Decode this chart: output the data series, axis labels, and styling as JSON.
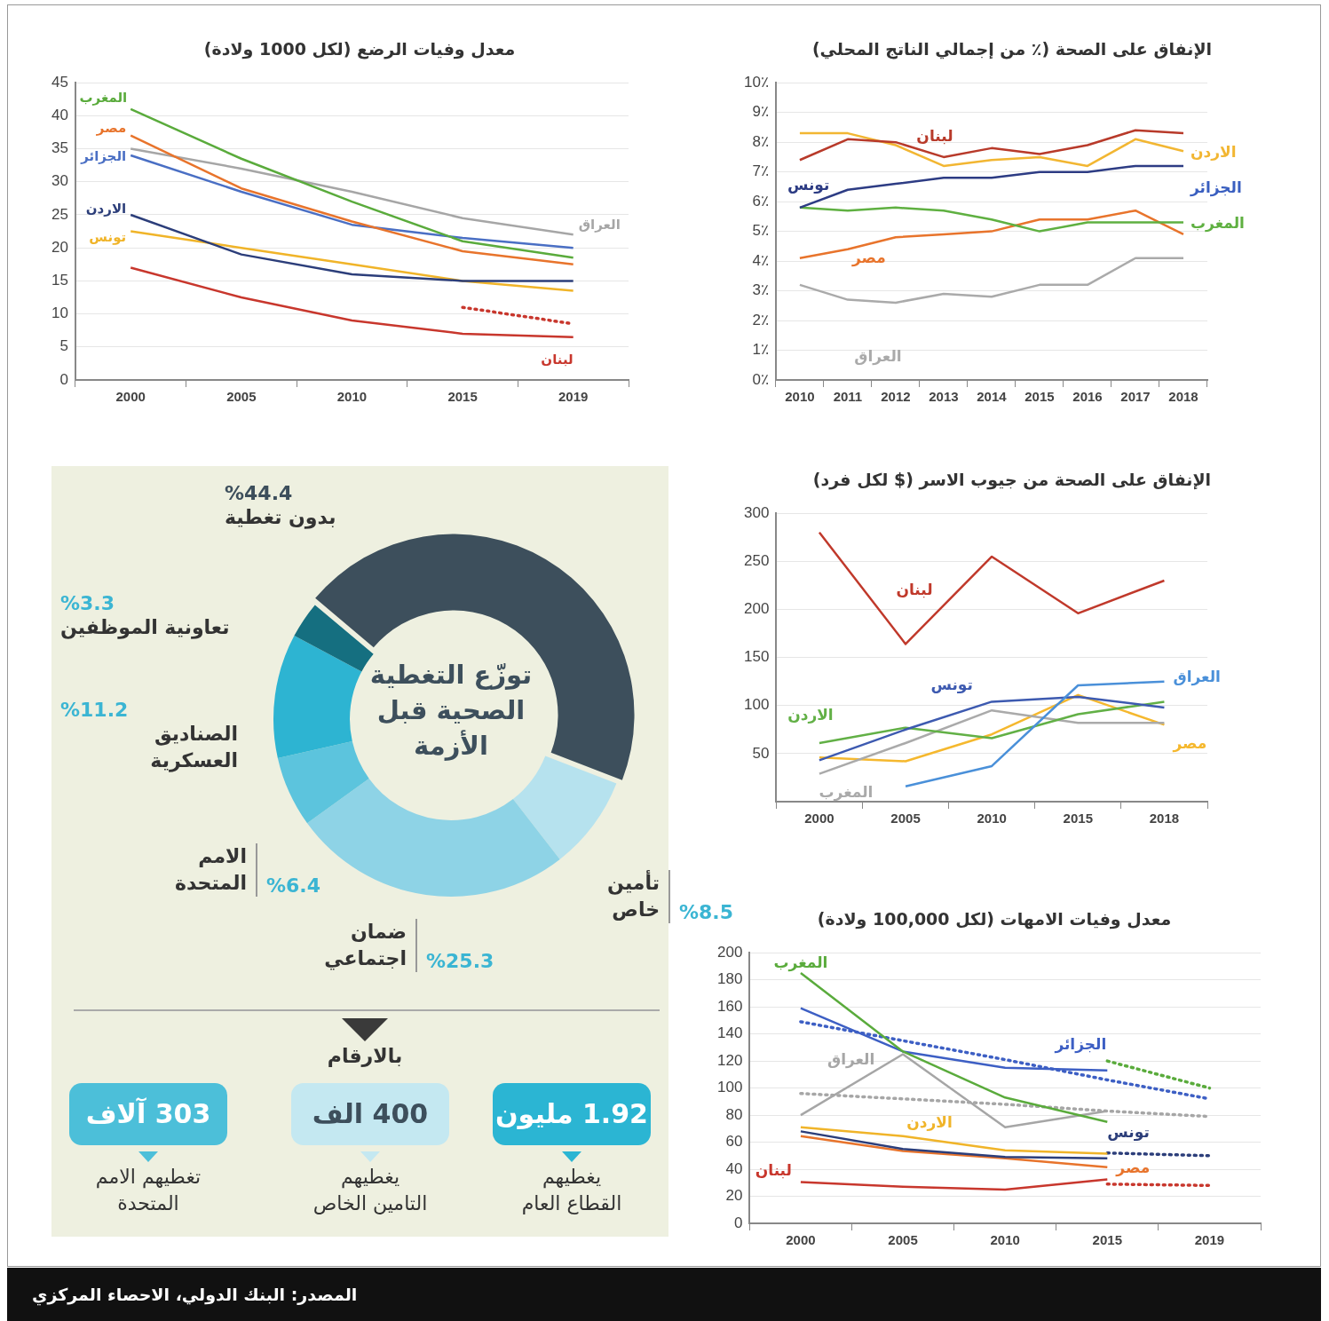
{
  "chart_data": [
    {
      "type": "line",
      "title": "معدل وفيات الرضع (لكل 1000 ولادة)",
      "categories": [
        "2000",
        "2005",
        "2010",
        "2015",
        "2019"
      ],
      "ylim": [
        0,
        45
      ],
      "yticks": [
        0,
        5,
        10,
        15,
        20,
        25,
        30,
        35,
        40,
        45
      ],
      "grid": "y",
      "legend": false,
      "series": [
        {
          "name": "المغرب",
          "color": "#5aab3c",
          "values": [
            41,
            33.5,
            27,
            21,
            18.5
          ]
        },
        {
          "name": "مصر",
          "color": "#e8742c",
          "values": [
            37,
            29,
            24,
            19.5,
            17.5
          ]
        },
        {
          "name": "الجزائر",
          "color": "#4a6fc4",
          "values": [
            34,
            28.5,
            23.5,
            21.5,
            20
          ]
        },
        {
          "name": "العراق",
          "color": "#a6a6a6",
          "values": [
            35,
            32,
            28.5,
            24.5,
            22
          ]
        },
        {
          "name": "الاردن",
          "color": "#2c3e7a",
          "values": [
            25,
            19,
            16,
            15,
            15
          ]
        },
        {
          "name": "تونس",
          "color": "#f0b429",
          "values": [
            22.5,
            20,
            17.5,
            15,
            13.5
          ]
        },
        {
          "name": "لبنان",
          "color": "#c8372d",
          "values": [
            17,
            12.5,
            9,
            7,
            6.5
          ]
        },
        {
          "color": "#c8372d",
          "line_style": "dotted",
          "values": [
            null,
            null,
            null,
            11,
            8.5
          ]
        }
      ]
    },
    {
      "type": "line",
      "title": "الإنفاق على الصحة (٪ من إجمالي الناتج المحلي)",
      "categories": [
        "2010",
        "2011",
        "2012",
        "2013",
        "2014",
        "2015",
        "2016",
        "2017",
        "2018"
      ],
      "ylim": [
        0,
        10
      ],
      "yticks": [
        {
          "value": 0,
          "label": "0٪"
        },
        {
          "value": 1,
          "label": "1٪"
        },
        {
          "value": 2,
          "label": "2٪"
        },
        {
          "value": 3,
          "label": "3٪"
        },
        {
          "value": 4,
          "label": "4٪"
        },
        {
          "value": 5,
          "label": "5٪"
        },
        {
          "value": 6,
          "label": "6٪"
        },
        {
          "value": 7,
          "label": "7٪"
        },
        {
          "value": 8,
          "label": "8٪"
        },
        {
          "value": 9,
          "label": "9٪"
        },
        {
          "value": 10,
          "label": "10٪"
        }
      ],
      "grid": "y",
      "legend": false,
      "series": [
        {
          "name": "لبنان",
          "color": "#b83a2a",
          "values": [
            7.4,
            8.1,
            8.0,
            7.5,
            7.8,
            7.6,
            7.9,
            8.4,
            8.3
          ]
        },
        {
          "name": "الاردن",
          "color": "#f2b632",
          "values": [
            8.3,
            8.3,
            7.9,
            7.2,
            7.4,
            7.5,
            7.2,
            8.1,
            7.7
          ]
        },
        {
          "name": "تونس",
          "color": "#2d3c84",
          "values": [
            5.8,
            6.4,
            6.6,
            6.8,
            6.8,
            7.0,
            7.0,
            7.2,
            7.2
          ]
        },
        {
          "name": "الجزائر",
          "color": "#3a5fc0",
          "values": [
            null,
            null,
            null,
            null,
            null,
            null,
            null,
            null,
            null
          ]
        },
        {
          "name": "المغرب",
          "color": "#5fb041",
          "values": [
            5.8,
            5.7,
            5.8,
            5.7,
            5.4,
            5.0,
            5.3,
            5.3,
            5.3
          ]
        },
        {
          "name": "مصر",
          "color": "#e8742c",
          "values": [
            4.1,
            4.4,
            4.8,
            4.9,
            5.0,
            5.4,
            5.4,
            5.7,
            4.9
          ]
        },
        {
          "name": "العراق",
          "color": "#aaaaaa",
          "values": [
            3.2,
            2.7,
            2.6,
            2.9,
            2.8,
            3.2,
            3.2,
            4.1,
            4.1
          ]
        }
      ]
    },
    {
      "type": "donut",
      "title": "توزّع التغطية الصحية قبل الأزمة",
      "categories": [
        "بدون تغطية",
        "تأمين خاص",
        "ضمان اجتماعي",
        "الامم المتحدة",
        "الصناديق العسكرية",
        "تعاونية الموظفين"
      ],
      "values": [
        44.4,
        8.5,
        25.3,
        6.4,
        11.2,
        3.3
      ],
      "value_labels": [
        "%44.4",
        "%8.5",
        "%25.3",
        "%6.4",
        "%11.2",
        "%3.3"
      ],
      "colors": [
        "#3d4f5c",
        "#b6e2ee",
        "#8ed3e6",
        "#5cc4dd",
        "#2db4d2",
        "#156f80"
      ],
      "legend": false
    },
    {
      "type": "line",
      "title": "الإنفاق على الصحة من جيوب الاسر ($ لكل فرد)",
      "categories": [
        "2000",
        "2005",
        "2010",
        "2015",
        "2018"
      ],
      "ylim": [
        0,
        300
      ],
      "yticks": [
        50,
        100,
        150,
        200,
        250,
        300
      ],
      "grid": "y",
      "legend": false,
      "series": [
        {
          "name": "لبنان",
          "color": "#c0392b",
          "values": [
            280,
            164,
            255,
            196,
            230
          ]
        },
        {
          "name": "العراق",
          "color": "#4a90d9",
          "values": [
            null,
            16,
            37,
            121,
            125
          ]
        },
        {
          "name": "تونس",
          "color": "#3d5ab0",
          "values": [
            43,
            75,
            104,
            109,
            98
          ]
        },
        {
          "name": "الاردن",
          "color": "#62b046",
          "values": [
            61,
            77,
            66,
            91,
            104
          ]
        },
        {
          "name": "المغرب",
          "color": "#aaaaaa",
          "values": [
            29,
            61,
            95,
            82,
            82
          ]
        },
        {
          "name": "مصر",
          "color": "#f5b82e",
          "values": [
            46,
            42,
            70,
            111,
            80
          ]
        }
      ]
    },
    {
      "type": "other",
      "title": "بالارقام",
      "categories": [
        "تغطيهم الامم المتحدة",
        "يغطيهم التامين الخاص",
        "يغطيهم القطاع العام"
      ],
      "value_labels": [
        "303 آلاف",
        "400 الف",
        "1.92 مليون"
      ],
      "colors": [
        "#4cbfd9",
        "#c4e8f1",
        "#2bb5d3"
      ],
      "annotations": [
        "المصدر: البنك الدولي، الاحصاء المركزي"
      ]
    },
    {
      "type": "line",
      "title": "معدل وفيات الامهات (لكل 100,000 ولادة)",
      "categories": [
        "2000",
        "2005",
        "2010",
        "2015",
        "2019"
      ],
      "ylim": [
        0,
        200
      ],
      "yticks": [
        0,
        20,
        40,
        60,
        80,
        100,
        120,
        140,
        160,
        180,
        200
      ],
      "grid": "y",
      "legend": false,
      "series": [
        {
          "name": "المغرب",
          "color": "#5aab3c",
          "values": [
            185,
            127,
            93,
            75,
            null
          ]
        },
        {
          "name": "الجزائر",
          "color": "#3d5fc4",
          "values": [
            159,
            127,
            115,
            113,
            null
          ]
        },
        {
          "name": "العراق",
          "color": "#a6a6a6",
          "values": [
            80,
            125,
            71,
            83,
            null
          ]
        },
        {
          "name": "الاردن",
          "color": "#f0b429",
          "values": [
            71,
            64.5,
            54,
            51.5,
            null
          ]
        },
        {
          "name": "تونس",
          "color": "#2c3e7a",
          "values": [
            68,
            55,
            49,
            48,
            null
          ]
        },
        {
          "name": "مصر",
          "color": "#e8742c",
          "values": [
            64.5,
            53.5,
            48,
            41.5,
            null
          ]
        },
        {
          "name": "لبنان",
          "color": "#c8372d",
          "values": [
            30.5,
            27,
            25,
            32.5,
            null
          ]
        },
        {
          "color": "#5aab3c",
          "line_style": "dotted",
          "values": [
            null,
            null,
            null,
            120,
            100
          ]
        },
        {
          "color": "#3d5fc4",
          "line_style": "dotted",
          "values": [
            149,
            135,
            121,
            106,
            92
          ]
        },
        {
          "color": "#a6a6a6",
          "line_style": "dotted",
          "values": [
            96,
            92,
            88,
            83,
            79
          ]
        },
        {
          "color": "#2c3e7a",
          "line_style": "dotted",
          "values": [
            null,
            null,
            null,
            52,
            50
          ]
        },
        {
          "color": "#c8372d",
          "line_style": "dotted",
          "values": [
            null,
            null,
            null,
            29,
            28
          ]
        }
      ]
    }
  ]
}
